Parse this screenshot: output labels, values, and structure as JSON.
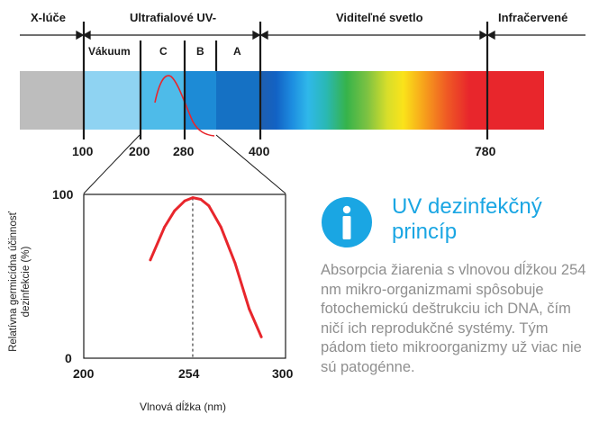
{
  "spectrum": {
    "regions": {
      "xray": "X-lúče",
      "uv": "Ultrafialové UV-",
      "visible": "Viditeľné svetlo",
      "infrared": "Infračervené"
    },
    "uv_bands": {
      "vacuum": "Vákuum",
      "c": "C",
      "b": "B",
      "a": "A"
    },
    "ticks": [
      "100",
      "200",
      "280",
      "400",
      "780"
    ]
  },
  "chart_data": {
    "type": "line",
    "x": [
      233,
      240,
      245,
      250,
      254,
      258,
      262,
      268,
      275,
      282,
      288
    ],
    "series": [
      {
        "values": [
          60,
          80,
          90,
          96,
          98,
          97,
          93,
          80,
          58,
          30,
          13
        ]
      }
    ],
    "xlabel": "Vlnová dĺžka (nm)",
    "ylabel": "Relatívna germicídna účinnosť dezinfekcie (%)",
    "xlim": [
      200,
      300
    ],
    "ylim": [
      0,
      100
    ],
    "x_ticks": [
      "200",
      "254",
      "300"
    ],
    "y_ticks": [
      "0",
      "100"
    ],
    "marker_line_x": 254,
    "line_color": "#e8262c"
  },
  "info": {
    "icon": "info-icon",
    "title": "UV dezinfekčný princíp",
    "body": "Absorpcia žiarenia s vlnovou dĺžkou 254 nm mikro-organizmami spôsobuje fotochemickú deštrukciu ich DNA, čím ničí ich reprodukčné systémy. Tým pádom tieto mikroorganizmy už viac nie sú patogénne.",
    "accent_color": "#1aa6e3"
  }
}
